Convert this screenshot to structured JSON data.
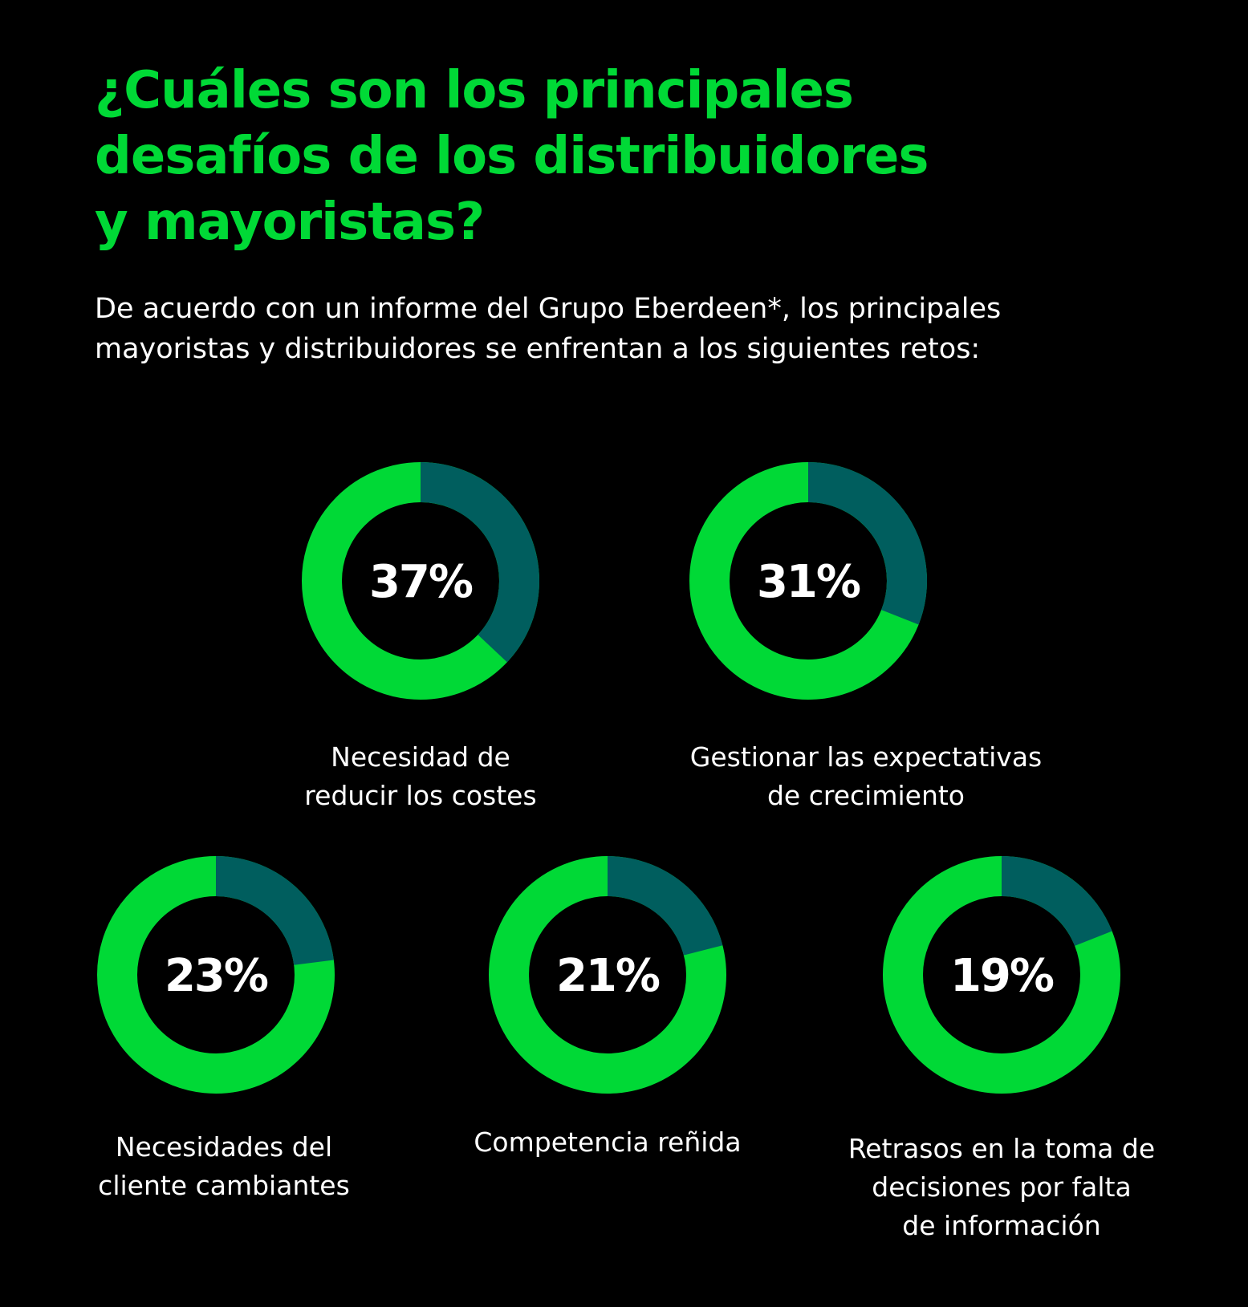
{
  "header": {
    "title_lines": [
      "¿Cuáles son los principales",
      "desafíos de los distribuidores",
      "y mayoristas?"
    ],
    "subtitle_lines": [
      "De acuerdo con un informe del Grupo Eberdeen*, los principales",
      "mayoristas y distribuidores se enfrentan a los siguientes retos:"
    ]
  },
  "colors": {
    "background": "#000000",
    "accent_green": "#00d936",
    "highlight_teal": "#005e5e",
    "text": "#ffffff"
  },
  "chart_data": {
    "type": "pie",
    "variant": "donut",
    "unit": "%",
    "items": [
      {
        "value": 37,
        "value_label": "37%",
        "label_lines": [
          "Necesidad de",
          "reducir los costes"
        ]
      },
      {
        "value": 31,
        "value_label": "31%",
        "label_lines": [
          "Gestionar las expectativas",
          "de crecimiento"
        ]
      },
      {
        "value": 23,
        "value_label": "23%",
        "label_lines": [
          "Necesidades del",
          "cliente cambiantes"
        ]
      },
      {
        "value": 21,
        "value_label": "21%",
        "label_lines": [
          "Competencia reñida"
        ]
      },
      {
        "value": 19,
        "value_label": "19%",
        "label_lines": [
          "Retrasos en la toma de",
          "decisiones por falta",
          "de información"
        ]
      }
    ]
  }
}
